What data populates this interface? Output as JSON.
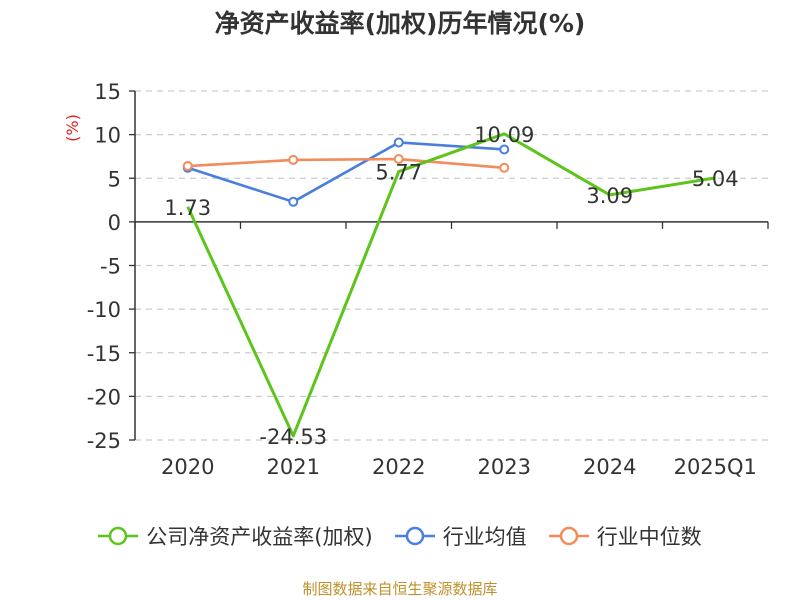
{
  "chart_data": {
    "type": "line",
    "title": "净资产收益率(加权)历年情况(%)",
    "ylabel": "(%)",
    "xlabel": "",
    "categories": [
      "2020",
      "2021",
      "2022",
      "2023",
      "2024",
      "2025Q1"
    ],
    "ylim": [
      -25,
      15
    ],
    "yticks": [
      15,
      10,
      5,
      0,
      -5,
      -10,
      -15,
      -20,
      -25
    ],
    "grid": true,
    "legend_position": "bottom",
    "series": [
      {
        "name": "公司净资产收益率(加权)",
        "color": "#5cc41b",
        "values": [
          1.73,
          -24.53,
          5.77,
          10.09,
          3.09,
          5.04
        ],
        "labels": [
          "1.73",
          "-24.53",
          "5.77",
          "10.09",
          "3.09",
          "5.04"
        ],
        "show_labels": true
      },
      {
        "name": "行业均值",
        "color": "#4b7fdc",
        "values": [
          6.2,
          2.3,
          9.1,
          8.3,
          null,
          null
        ],
        "show_labels": false
      },
      {
        "name": "行业中位数",
        "color": "#f28c5a",
        "values": [
          6.4,
          7.1,
          7.2,
          6.2,
          null,
          null
        ],
        "show_labels": false
      }
    ]
  },
  "source": "制图数据来自恒生聚源数据库",
  "colors": {
    "axis": "#333333",
    "grid": "#cccccc",
    "ylabel": "#e02020",
    "text": "#333333"
  }
}
